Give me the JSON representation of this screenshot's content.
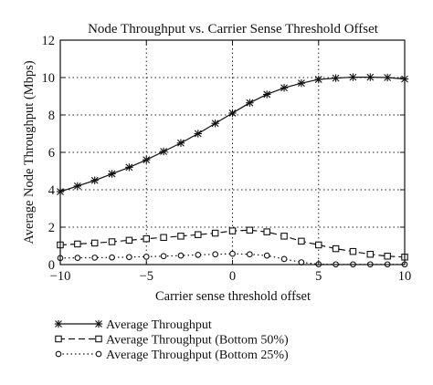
{
  "chart_data": {
    "type": "line",
    "title": "Node Throughput vs. Carrier Sense Threshold Offset",
    "xlabel": "Carrier sense threshold offset",
    "ylabel": "Average Node Throughput (Mbps)",
    "xlim": [
      -10,
      10
    ],
    "ylim": [
      0,
      12
    ],
    "xticks": [
      -10,
      -5,
      0,
      5,
      10
    ],
    "yticks": [
      0,
      2,
      4,
      6,
      8,
      10,
      12
    ],
    "grid": true,
    "legend_position": "below",
    "x": [
      -10,
      -9,
      -8,
      -7,
      -6,
      -5,
      -4,
      -3,
      -2,
      -1,
      0,
      1,
      2,
      3,
      4,
      5,
      6,
      7,
      8,
      9,
      10
    ],
    "series": [
      {
        "name": "Average Throughput",
        "marker": "star",
        "line_style": "solid",
        "values": [
          3.9,
          4.2,
          4.5,
          4.85,
          5.2,
          5.6,
          6.05,
          6.5,
          7.0,
          7.55,
          8.1,
          8.65,
          9.1,
          9.45,
          9.7,
          9.9,
          9.97,
          10.02,
          10.02,
          10.0,
          9.92
        ]
      },
      {
        "name": "Average Throughput (Bottom 50%)",
        "marker": "square",
        "line_style": "dashed",
        "values": [
          1.05,
          1.1,
          1.15,
          1.22,
          1.3,
          1.38,
          1.45,
          1.52,
          1.6,
          1.68,
          1.8,
          1.84,
          1.75,
          1.52,
          1.25,
          1.05,
          0.85,
          0.7,
          0.55,
          0.45,
          0.4
        ]
      },
      {
        "name": "Average Throughput (Bottom 25%)",
        "marker": "circle",
        "line_style": "dotted",
        "values": [
          0.35,
          0.36,
          0.37,
          0.38,
          0.4,
          0.42,
          0.45,
          0.48,
          0.52,
          0.55,
          0.58,
          0.55,
          0.48,
          0.3,
          0.12,
          0.02,
          0.01,
          0.01,
          0.01,
          0.01,
          0.01
        ]
      }
    ]
  }
}
